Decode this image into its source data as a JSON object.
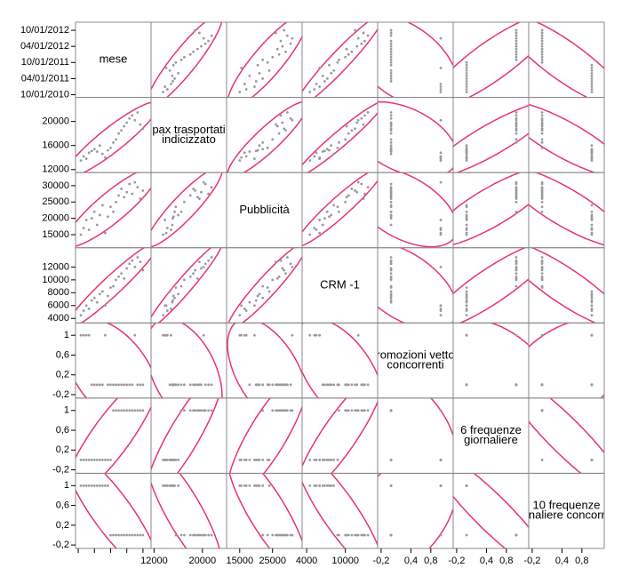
{
  "chart_data": {
    "type": "scatter-matrix",
    "point_color": "#9a9a9a",
    "ellipse_color": "#e8336d",
    "border_color": "#888888",
    "variables": [
      {
        "label": [
          "mese"
        ],
        "values": [
          "11/01/2010",
          "12/01/2010",
          "01/01/2011",
          "02/01/2011",
          "03/01/2011",
          "04/01/2011",
          "05/01/2011",
          "06/01/2011",
          "07/01/2011",
          "08/01/2011",
          "09/01/2011",
          "10/01/2011",
          "11/01/2011",
          "12/01/2011",
          "01/01/2012",
          "02/01/2012",
          "03/01/2012",
          "04/01/2012",
          "05/01/2012",
          "06/01/2012",
          "07/01/2012",
          "08/01/2012",
          "09/01/2012",
          "10/01/2012"
        ],
        "lim": [
          "09/01/2010",
          "01/01/2013"
        ],
        "yticks": [
          "10/01/2012",
          "04/01/2012",
          "10/01/2011",
          "04/01/2011",
          "10/01/2010"
        ]
      },
      {
        "label": [
          "pax trasportati",
          "indicizzato"
        ],
        "values": [
          13500,
          14200,
          13800,
          14800,
          15100,
          15400,
          15000,
          16000,
          14600,
          14000,
          15200,
          15600,
          16500,
          17000,
          18000,
          18500,
          19200,
          19800,
          20500,
          21000,
          20200,
          21500,
          19500,
          18800
        ],
        "lim": [
          11500,
          24000
        ],
        "yticks": [
          20000,
          16000,
          12000
        ],
        "xticks": [
          12000,
          20000
        ]
      },
      {
        "label": [
          "Pubblicità"
        ],
        "values": [
          15000,
          17000,
          19500,
          16500,
          20000,
          22000,
          18000,
          21000,
          24000,
          15500,
          20500,
          23500,
          22000,
          25000,
          27000,
          29000,
          26500,
          28000,
          30500,
          27500,
          31000,
          29500,
          26000,
          28500
        ],
        "lim": [
          11000,
          34000
        ],
        "yticks": [
          30000,
          25000,
          20000,
          15000
        ],
        "xticks": [
          15000,
          25000
        ]
      },
      {
        "label": [
          "CRM -1"
        ],
        "values": [
          4500,
          5200,
          6000,
          5500,
          6800,
          7200,
          6500,
          7800,
          8200,
          6000,
          7500,
          8800,
          9000,
          10000,
          10500,
          11000,
          10200,
          11800,
          12500,
          13000,
          12000,
          13500,
          12800,
          11500
        ],
        "lim": [
          3300,
          15000
        ],
        "yticks": [
          12000,
          10000,
          8000,
          6000,
          4000
        ],
        "xticks": [
          4000,
          10000
        ]
      },
      {
        "label": [
          "promozioni vettori",
          "concorrenti"
        ],
        "values": [
          1,
          1,
          1,
          1,
          0,
          0,
          0,
          0,
          0,
          1,
          0,
          0,
          0,
          0,
          0,
          0,
          0,
          0,
          0,
          0,
          1,
          0,
          0,
          0
        ],
        "lim": [
          -0.27,
          1.25
        ],
        "yticks": [
          1,
          {
            "value": 0.6,
            "label": "0,6"
          },
          {
            "value": 0.2,
            "label": "0,2"
          },
          {
            "value": -0.2,
            "label": "-0,2"
          }
        ],
        "xticks": [
          {
            "value": -0.2,
            "label": "-0,2"
          },
          {
            "value": 0.4,
            "label": "0,4"
          },
          {
            "value": 0.8,
            "label": "0,8"
          }
        ]
      },
      {
        "label": [
          "6 frequenze",
          "giornaliere"
        ],
        "values": [
          0,
          0,
          0,
          0,
          0,
          0,
          0,
          0,
          0,
          0,
          0,
          0,
          1,
          1,
          1,
          1,
          1,
          1,
          1,
          1,
          1,
          1,
          1,
          1
        ],
        "lim": [
          -0.27,
          1.25
        ],
        "yticks": [
          1,
          {
            "value": 0.6,
            "label": "0,6"
          },
          {
            "value": 0.2,
            "label": "0,2"
          },
          {
            "value": -0.2,
            "label": "-0,2"
          }
        ],
        "xticks": [
          {
            "value": -0.2,
            "label": "-0,2"
          },
          {
            "value": 0.4,
            "label": "0,4"
          },
          {
            "value": 0.8,
            "label": "0,8"
          }
        ]
      },
      {
        "label": [
          "10 frequenze",
          "giornaliere concorrenti"
        ],
        "values": [
          1,
          1,
          1,
          1,
          1,
          1,
          1,
          1,
          1,
          1,
          1,
          0,
          0,
          0,
          0,
          0,
          0,
          0,
          0,
          0,
          0,
          0,
          0,
          0
        ],
        "lim": [
          -0.27,
          1.25
        ],
        "yticks": [
          1,
          {
            "value": 0.6,
            "label": "0,6"
          },
          {
            "value": 0.2,
            "label": "0,2"
          },
          {
            "value": -0.2,
            "label": "-0,2"
          }
        ],
        "xticks": [
          {
            "value": -0.2,
            "label": "-0,2"
          },
          {
            "value": 0.4,
            "label": "0,4"
          },
          {
            "value": 0.8,
            "label": "0,8"
          }
        ]
      }
    ]
  }
}
